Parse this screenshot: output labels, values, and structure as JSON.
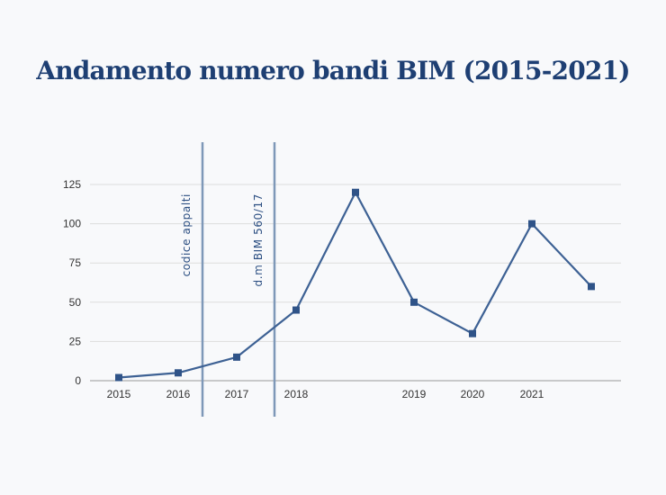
{
  "chart_data": {
    "type": "line",
    "title": "Andamento numero bandi BIM (2015-2021)",
    "xlabel": "",
    "ylabel": "",
    "ylim": [
      0,
      125
    ],
    "y_ticks": [
      "0",
      "25",
      "50",
      "75",
      "100",
      "125"
    ],
    "x_tick_labels": [
      "2015",
      "2016",
      "2017",
      "2018",
      "2019",
      "2020",
      "2021"
    ],
    "grid": "horizontal",
    "legend": "none",
    "series": [
      {
        "values": [
          2,
          5,
          15,
          45,
          120,
          50,
          30,
          100,
          60
        ]
      }
    ],
    "annotations": [
      {
        "label": "codice appalti",
        "type": "vertical-line"
      },
      {
        "label": "d.m BIM 560/17",
        "type": "vertical-line"
      }
    ],
    "colors": {
      "line": "#3d6194",
      "marker": "#2f5388",
      "annotation": "#7e98b8",
      "annotation_text": "#2c4f82",
      "grid": "#dddddd",
      "title": "#1e3f73"
    }
  }
}
